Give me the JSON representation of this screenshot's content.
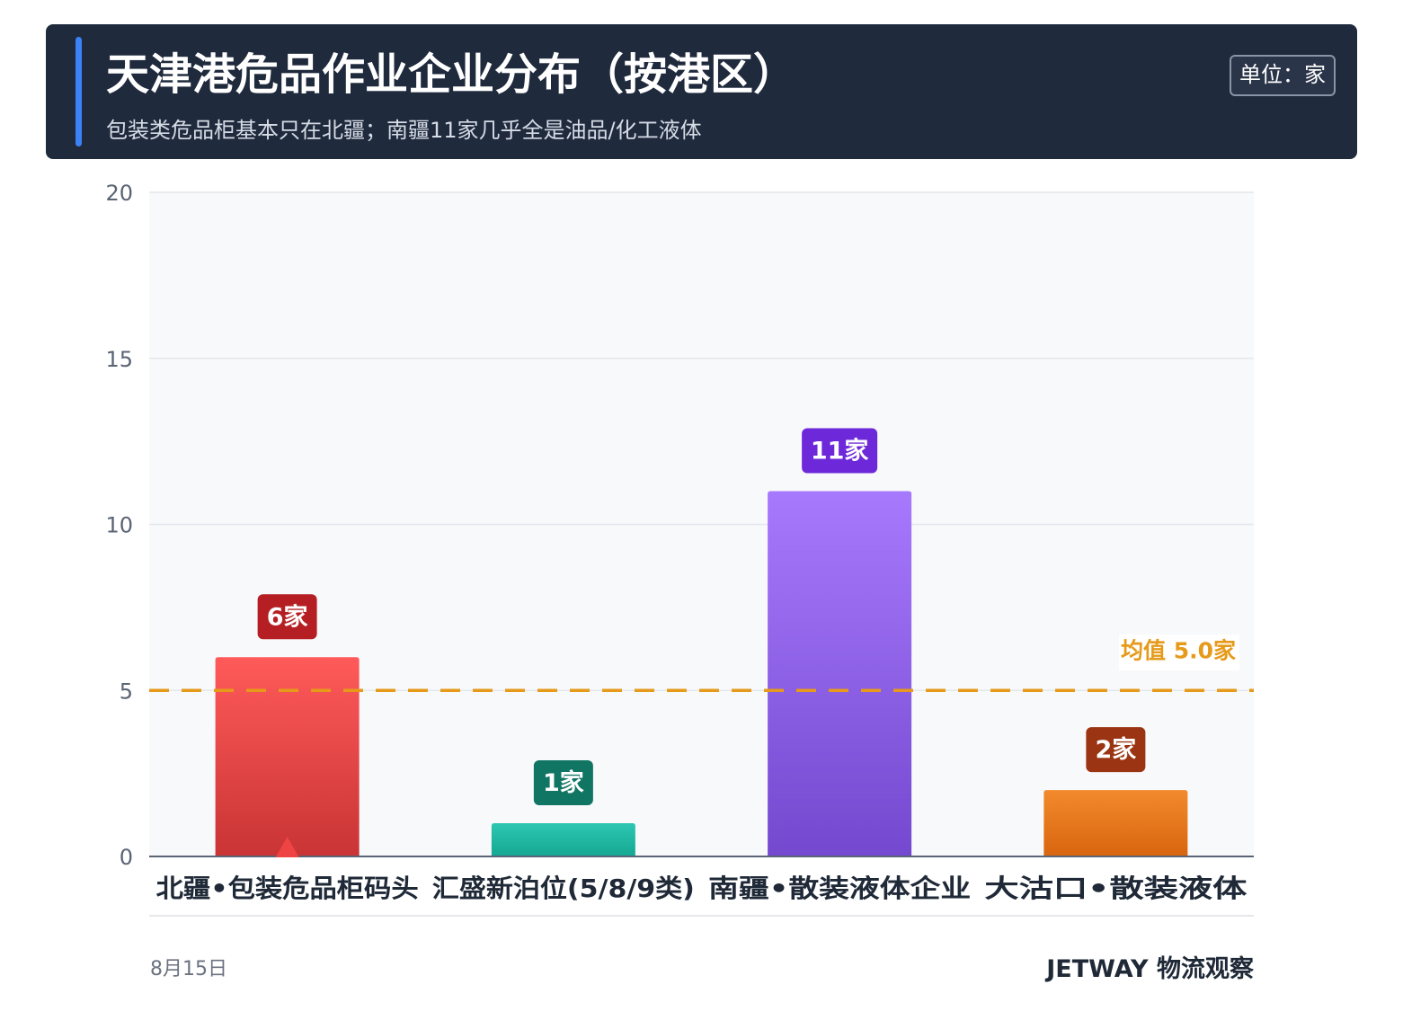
{
  "header": {
    "title": "天津港危品作业企业分布（按港区）",
    "subtitle": "包装类危品柜基本只在北疆；南疆11家几乎全是油品/化工液体",
    "unit": "单位：家"
  },
  "chart_data": {
    "type": "bar",
    "categories": [
      "北疆•包装危品柜码头",
      "汇盛新泊位(5/8/9类)",
      "南疆•散装液体企业",
      "大沽口•散装液体"
    ],
    "values": [
      6,
      1,
      11,
      2
    ],
    "value_labels": [
      "6家",
      "1家",
      "11家",
      "2家"
    ],
    "ylim": [
      0,
      20
    ],
    "yticks": [
      0,
      5,
      10,
      15,
      20
    ],
    "grid": true,
    "reference_line": {
      "value": 5.0,
      "label": "均值 5.0家",
      "color": "#e69a1a"
    },
    "marker_category": "北疆•包装危品柜码头",
    "colors": {
      "bars_top": [
        "#ff5a5a",
        "#2cc7b2",
        "#a779fc",
        "#f28a2c"
      ],
      "bars_bottom": [
        "#c93434",
        "#15a892",
        "#7449cf",
        "#d8650f"
      ],
      "label_bg": [
        "#b51f23",
        "#117564",
        "#6d28d9",
        "#9a3412"
      ],
      "marker": "#ef4444"
    }
  },
  "footer": {
    "date": "8月15日",
    "brand": "JETWAY 物流观察"
  }
}
